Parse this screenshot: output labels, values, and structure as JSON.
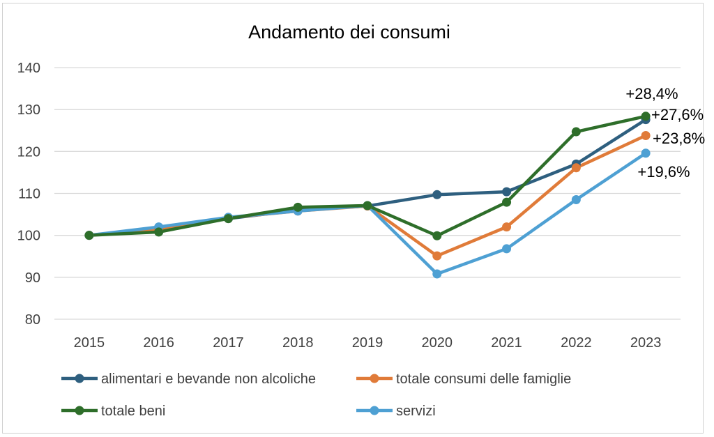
{
  "chart_data": {
    "type": "line",
    "title": "Andamento dei consumi",
    "xlabel": "",
    "ylabel": "",
    "categories": [
      "2015",
      "2016",
      "2017",
      "2018",
      "2019",
      "2020",
      "2021",
      "2022",
      "2023"
    ],
    "ylim": [
      80,
      140
    ],
    "yticks": [
      "80",
      "90",
      "100",
      "110",
      "120",
      "130",
      "140"
    ],
    "grid": true,
    "legend_position": "bottom",
    "series": [
      {
        "name": "alimentari e bevande non alcoliche",
        "color": "#2e5f7f",
        "values": [
          100,
          101.5,
          104,
          106,
          107,
          109.7,
          110.4,
          117,
          127.6
        ]
      },
      {
        "name": "totale consumi delle famiglie",
        "color": "#e07b39",
        "values": [
          100,
          101.5,
          104.2,
          105.8,
          107,
          95.1,
          102,
          116.1,
          123.8
        ]
      },
      {
        "name": "totale beni",
        "color": "#2e6e2a",
        "values": [
          100,
          100.8,
          104,
          106.7,
          107.1,
          99.9,
          107.9,
          124.7,
          128.4
        ]
      },
      {
        "name": "servizi",
        "color": "#4ea0d3",
        "values": [
          100,
          102,
          104.3,
          105.8,
          107.1,
          90.8,
          96.8,
          108.5,
          119.6
        ]
      }
    ],
    "annotations": [
      {
        "text": "+28,4%",
        "series": "totale beni"
      },
      {
        "text": "+27,6%",
        "series": "alimentari e bevande non alcoliche"
      },
      {
        "text": "+23,8%",
        "series": "totale consumi delle famiglie"
      },
      {
        "text": "+19,6%",
        "series": "servizi"
      }
    ]
  }
}
